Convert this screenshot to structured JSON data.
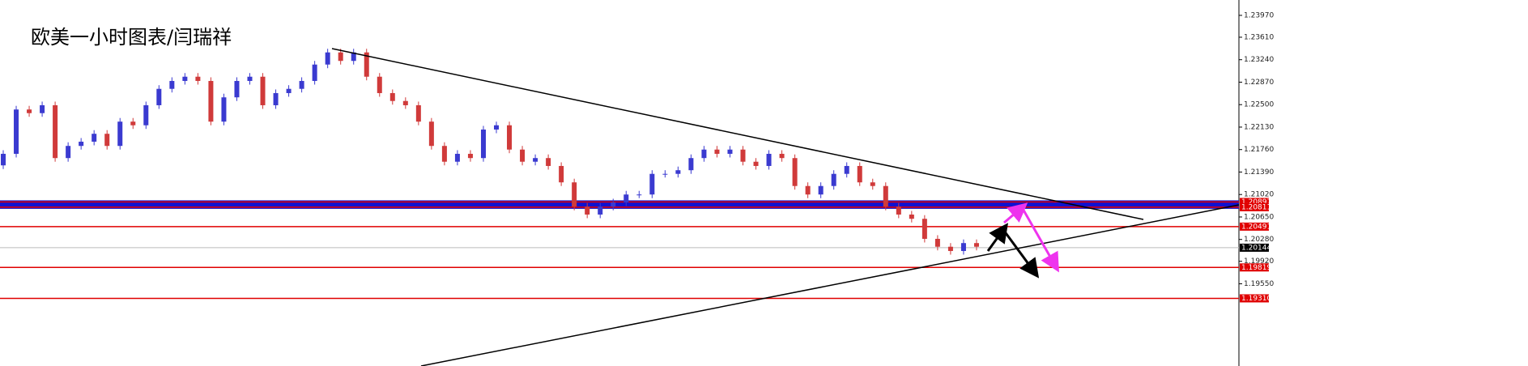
{
  "chart_data": {
    "type": "candlestick",
    "title": "欧美一小时图表/闫瑞祥",
    "up_color": "#3a3ad0",
    "down_color": "#d03a3a",
    "ylim": [
      1.18196,
      1.24223
    ],
    "yticks": [
      {
        "value": 1.2397,
        "label": "1.23970"
      },
      {
        "value": 1.2361,
        "label": "1.23610"
      },
      {
        "value": 1.2324,
        "label": "1.23240"
      },
      {
        "value": 1.2287,
        "label": "1.22870"
      },
      {
        "value": 1.225,
        "label": "1.22500"
      },
      {
        "value": 1.2213,
        "label": "1.22130"
      },
      {
        "value": 1.2176,
        "label": "1.21760"
      },
      {
        "value": 1.2139,
        "label": "1.21390"
      },
      {
        "value": 1.2102,
        "label": "1.21020"
      },
      {
        "value": 1.2065,
        "label": "1.20650"
      },
      {
        "value": 1.2028,
        "label": "1.20280"
      },
      {
        "value": 1.1992,
        "label": "1.19920"
      },
      {
        "value": 1.1955,
        "label": "1.19550"
      }
    ],
    "band": {
      "color": "#1010d0",
      "values": [
        1.20897,
        1.20811
      ]
    },
    "levels": [
      {
        "value": 1.20491,
        "color": "#e00000"
      },
      {
        "value": 1.19819,
        "color": "#e00000"
      },
      {
        "value": 1.1931,
        "label": "1.19310",
        "color": "#e00000"
      }
    ],
    "current_price": {
      "value": 1.20144,
      "color": "#000000"
    },
    "open": [
      1.215,
      1.2169,
      1.2242,
      1.2236,
      1.2249,
      1.2162,
      1.2182,
      1.2189,
      1.2202,
      1.2182,
      1.2222,
      1.2216,
      1.2249,
      1.2276,
      1.2289,
      1.2296,
      1.2289,
      1.2222,
      1.2262,
      1.2289,
      1.2296,
      1.2249,
      1.2269,
      1.2276,
      1.2289,
      1.2316,
      1.2336,
      1.2322,
      1.2336,
      1.2296,
      1.2269,
      1.2256,
      1.2249,
      1.2222,
      1.2182,
      1.2156,
      1.2169,
      1.2162,
      1.2209,
      1.2216,
      1.2176,
      1.2156,
      1.2162,
      1.2149,
      1.2122,
      1.2082,
      1.2069,
      1.2082,
      1.2089,
      1.2102,
      1.2102,
      1.2136,
      1.2136,
      1.2142,
      1.2162,
      1.2176,
      1.2169,
      1.2176,
      1.2156,
      1.2149,
      1.2169,
      1.2162,
      1.2116,
      1.2102,
      1.2116,
      1.2136,
      1.2149,
      1.2122,
      1.2116,
      1.2082,
      1.2069,
      1.2062,
      1.2029,
      1.2016,
      1.2009,
      1.2022
    ],
    "high": [
      1.2175,
      1.2248,
      1.2248,
      1.2255,
      1.2255,
      1.2188,
      1.2195,
      1.2208,
      1.2208,
      1.2228,
      1.2228,
      1.2255,
      1.2282,
      1.2295,
      1.2302,
      1.2302,
      1.2295,
      1.2268,
      1.2295,
      1.2302,
      1.2302,
      1.2275,
      1.2282,
      1.2295,
      1.2322,
      1.2342,
      1.2342,
      1.2342,
      1.2342,
      1.2302,
      1.2275,
      1.2262,
      1.2255,
      1.2228,
      1.2188,
      1.2175,
      1.2175,
      1.2215,
      1.2222,
      1.2222,
      1.2182,
      1.2168,
      1.2168,
      1.2155,
      1.2128,
      1.2088,
      1.2088,
      1.2095,
      1.2108,
      1.2108,
      1.2142,
      1.2142,
      1.2148,
      1.2168,
      1.2182,
      1.2182,
      1.2182,
      1.2182,
      1.2162,
      1.2175,
      1.2175,
      1.2168,
      1.2122,
      1.2122,
      1.2142,
      1.2155,
      1.2155,
      1.2128,
      1.2122,
      1.2088,
      1.2075,
      1.2068,
      1.2035,
      1.2022,
      1.2028,
      1.2028
    ],
    "low": [
      1.2144,
      1.2163,
      1.223,
      1.223,
      1.2156,
      1.2156,
      1.2176,
      1.2183,
      1.2176,
      1.2176,
      1.221,
      1.221,
      1.2243,
      1.227,
      1.2283,
      1.2283,
      1.2216,
      1.2216,
      1.2256,
      1.2283,
      1.2243,
      1.2243,
      1.2263,
      1.227,
      1.2283,
      1.231,
      1.2316,
      1.2316,
      1.229,
      1.2263,
      1.225,
      1.2243,
      1.2216,
      1.2176,
      1.215,
      1.215,
      1.2156,
      1.2156,
      1.2203,
      1.217,
      1.215,
      1.215,
      1.2143,
      1.2116,
      1.2076,
      1.2063,
      1.2063,
      1.2076,
      1.2083,
      1.2096,
      1.2096,
      1.213,
      1.213,
      1.2136,
      1.2156,
      1.2163,
      1.2163,
      1.215,
      1.2143,
      1.2143,
      1.2156,
      1.211,
      1.2096,
      1.2096,
      1.211,
      1.213,
      1.2116,
      1.211,
      1.2076,
      1.2063,
      1.2056,
      1.2023,
      1.201,
      1.2003,
      1.2003,
      1.201
    ],
    "close": [
      1.2169,
      1.2242,
      1.2236,
      1.2249,
      1.2162,
      1.2182,
      1.2189,
      1.2202,
      1.2182,
      1.2222,
      1.2216,
      1.2249,
      1.2276,
      1.2289,
      1.2296,
      1.2289,
      1.2222,
      1.2262,
      1.2289,
      1.2296,
      1.2249,
      1.2269,
      1.2276,
      1.2289,
      1.2316,
      1.2336,
      1.2322,
      1.2336,
      1.2296,
      1.2269,
      1.2256,
      1.2249,
      1.2222,
      1.2182,
      1.2156,
      1.2169,
      1.2162,
      1.2209,
      1.2216,
      1.2176,
      1.2156,
      1.2162,
      1.2149,
      1.2122,
      1.2082,
      1.2069,
      1.2082,
      1.2089,
      1.2102,
      1.2102,
      1.2136,
      1.2136,
      1.2142,
      1.2162,
      1.2176,
      1.2169,
      1.2176,
      1.2156,
      1.2149,
      1.2169,
      1.2162,
      1.2116,
      1.2102,
      1.2116,
      1.2136,
      1.2149,
      1.2122,
      1.2116,
      1.2082,
      1.2069,
      1.2062,
      1.2029,
      1.2016,
      1.2009,
      1.2022,
      1.2016
    ]
  }
}
